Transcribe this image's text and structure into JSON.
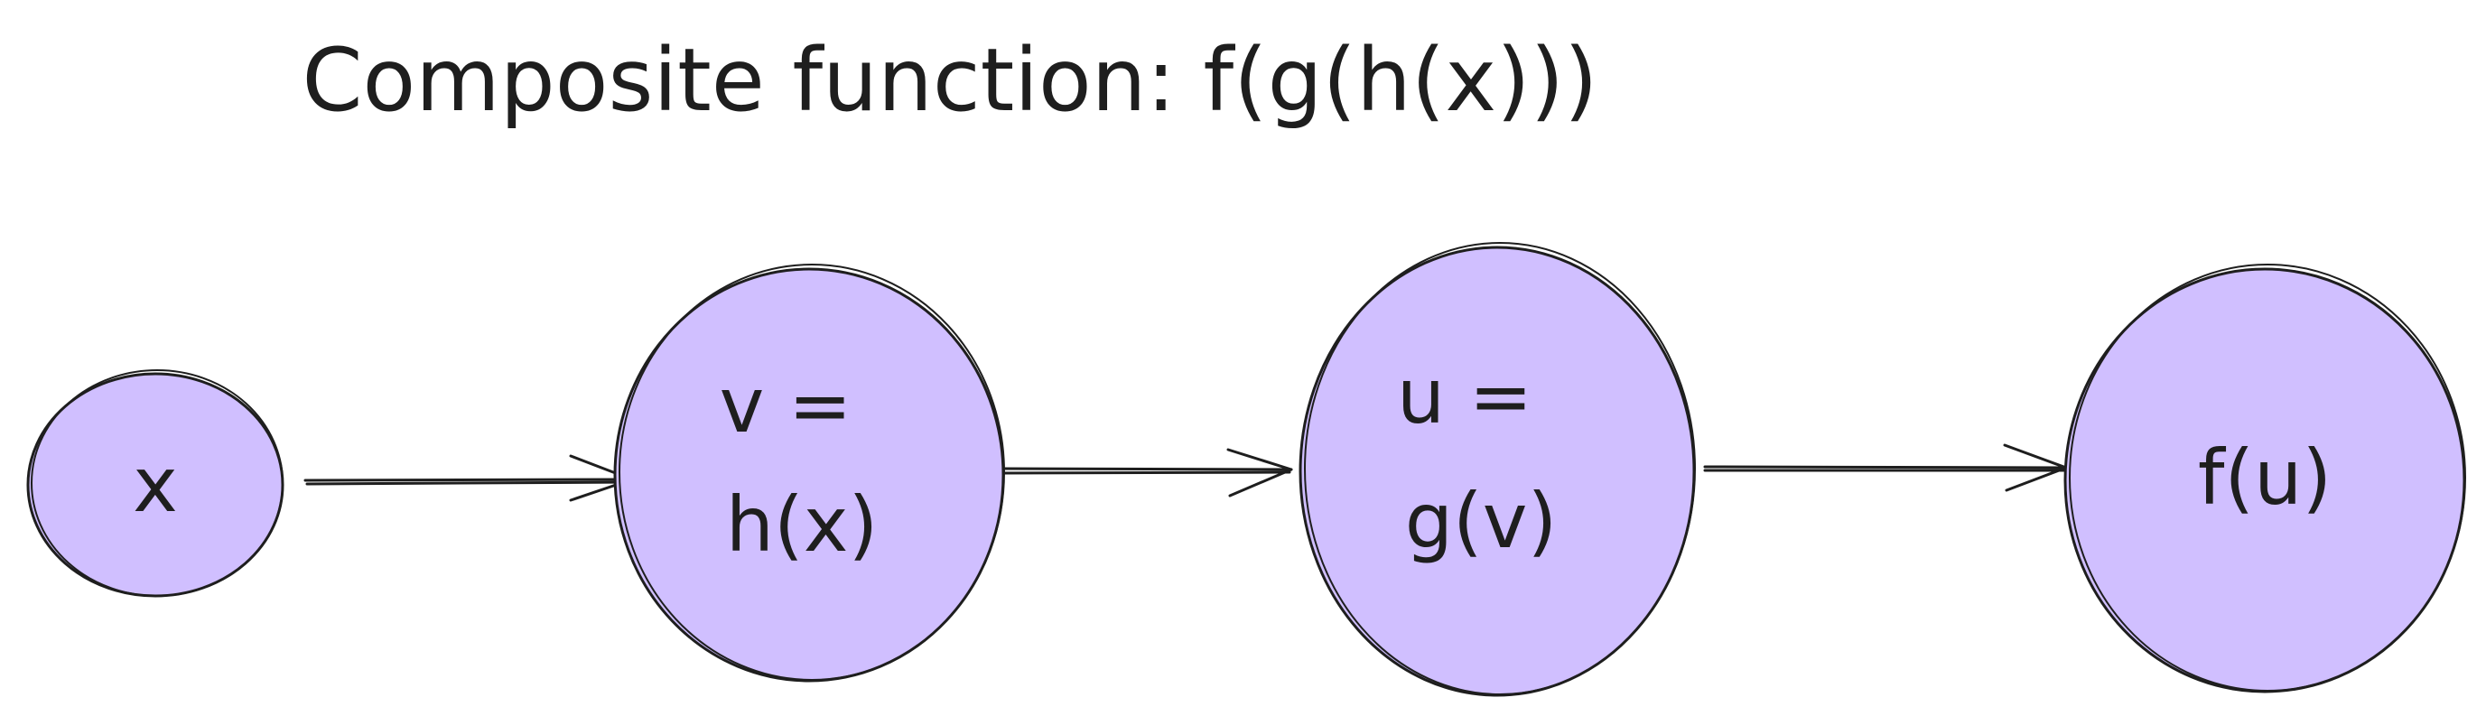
{
  "title": "Composite function: f(g(h(x)))",
  "node_fill_color": "#d0bfff",
  "stroke_color": "#1e1e1e",
  "nodes": [
    {
      "id": "x",
      "lines": [
        "x"
      ]
    },
    {
      "id": "v",
      "lines": [
        "v =",
        "h(x)"
      ]
    },
    {
      "id": "u",
      "lines": [
        "u =",
        "g(v)"
      ]
    },
    {
      "id": "fu",
      "lines": [
        "f(u)"
      ]
    }
  ],
  "edges": [
    {
      "from": "x",
      "to": "v"
    },
    {
      "from": "v",
      "to": "u"
    },
    {
      "from": "u",
      "to": "fu"
    }
  ]
}
